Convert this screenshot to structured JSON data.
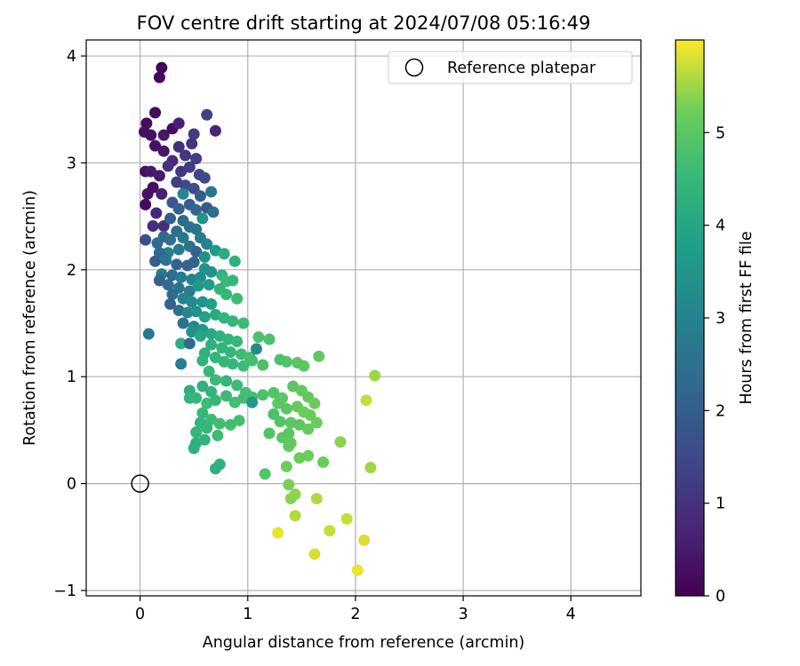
{
  "chart_data": {
    "type": "scatter",
    "title": "FOV centre drift starting at 2024/07/08 05:16:49",
    "xlabel": "Angular distance from reference (arcmin)",
    "ylabel": "Rotation from reference (arcmin)",
    "xlim": [
      -0.5,
      4.65
    ],
    "ylim": [
      -1.05,
      4.15
    ],
    "x_ticks": [
      0,
      1,
      2,
      3,
      4
    ],
    "x_tick_labels": [
      "0",
      "1",
      "2",
      "3",
      "4"
    ],
    "y_ticks": [
      -1,
      0,
      1,
      2,
      3,
      4
    ],
    "y_tick_labels": [
      "−1",
      "0",
      "1",
      "2",
      "3",
      "4"
    ],
    "grid": true,
    "legend": {
      "placement": "top-right",
      "entries": [
        {
          "label": "Reference platepar",
          "marker": "open-circle"
        }
      ]
    },
    "reference_point": {
      "x": 0,
      "y": 0,
      "label": "Reference platepar"
    },
    "colorbar": {
      "label": "Hours from first FF file",
      "colormap": "viridis",
      "range": [
        0,
        6
      ],
      "ticks": [
        0,
        1,
        2,
        3,
        4,
        5
      ],
      "tick_labels": [
        "0",
        "1",
        "2",
        "3",
        "4",
        "5"
      ]
    },
    "points": [
      {
        "x": 0.2,
        "y": 3.89,
        "c": 0.1
      },
      {
        "x": 0.18,
        "y": 3.8,
        "c": 0.1
      },
      {
        "x": 0.14,
        "y": 3.47,
        "c": 0.2
      },
      {
        "x": 0.06,
        "y": 3.37,
        "c": 0.2
      },
      {
        "x": 0.04,
        "y": 3.29,
        "c": 0.3
      },
      {
        "x": 0.1,
        "y": 3.26,
        "c": 0.3
      },
      {
        "x": 0.14,
        "y": 3.16,
        "c": 0.3
      },
      {
        "x": 0.22,
        "y": 3.26,
        "c": 0.4
      },
      {
        "x": 0.3,
        "y": 3.32,
        "c": 0.2
      },
      {
        "x": 0.36,
        "y": 3.37,
        "c": 0.6
      },
      {
        "x": 0.22,
        "y": 3.11,
        "c": 0.4
      },
      {
        "x": 0.05,
        "y": 2.92,
        "c": 0.3
      },
      {
        "x": 0.1,
        "y": 2.92,
        "c": 0.5
      },
      {
        "x": 0.18,
        "y": 2.88,
        "c": 0.5
      },
      {
        "x": 0.07,
        "y": 2.71,
        "c": 0.3
      },
      {
        "x": 0.12,
        "y": 2.77,
        "c": 0.3
      },
      {
        "x": 0.05,
        "y": 2.61,
        "c": 0.2
      },
      {
        "x": 0.2,
        "y": 2.71,
        "c": 0.6
      },
      {
        "x": 0.15,
        "y": 2.53,
        "c": 0.8
      },
      {
        "x": 0.12,
        "y": 2.41,
        "c": 0.9
      },
      {
        "x": 0.22,
        "y": 2.41,
        "c": 0.9
      },
      {
        "x": 0.05,
        "y": 2.28,
        "c": 1.6
      },
      {
        "x": 0.62,
        "y": 3.45,
        "c": 1.3
      },
      {
        "x": 0.7,
        "y": 3.3,
        "c": 0.7
      },
      {
        "x": 0.5,
        "y": 3.27,
        "c": 1.2
      },
      {
        "x": 0.48,
        "y": 3.18,
        "c": 1.0
      },
      {
        "x": 0.36,
        "y": 3.15,
        "c": 0.9
      },
      {
        "x": 0.3,
        "y": 3.02,
        "c": 0.8
      },
      {
        "x": 0.42,
        "y": 3.07,
        "c": 1.1
      },
      {
        "x": 0.52,
        "y": 3.04,
        "c": 1.2
      },
      {
        "x": 0.26,
        "y": 2.97,
        "c": 1.0
      },
      {
        "x": 0.38,
        "y": 2.92,
        "c": 1.1
      },
      {
        "x": 0.46,
        "y": 2.96,
        "c": 1.2
      },
      {
        "x": 0.55,
        "y": 2.89,
        "c": 1.4
      },
      {
        "x": 0.6,
        "y": 2.86,
        "c": 1.5
      },
      {
        "x": 0.34,
        "y": 2.82,
        "c": 1.3
      },
      {
        "x": 0.42,
        "y": 2.79,
        "c": 1.5
      },
      {
        "x": 0.5,
        "y": 2.76,
        "c": 1.6
      },
      {
        "x": 0.56,
        "y": 2.69,
        "c": 2.0
      },
      {
        "x": 0.66,
        "y": 2.73,
        "c": 2.6
      },
      {
        "x": 0.4,
        "y": 2.71,
        "c": 3.1
      },
      {
        "x": 0.3,
        "y": 2.63,
        "c": 1.8
      },
      {
        "x": 0.36,
        "y": 2.57,
        "c": 2.1
      },
      {
        "x": 0.46,
        "y": 2.61,
        "c": 2.0
      },
      {
        "x": 0.52,
        "y": 2.56,
        "c": 2.2
      },
      {
        "x": 0.62,
        "y": 2.58,
        "c": 1.9
      },
      {
        "x": 0.68,
        "y": 2.54,
        "c": 2.4
      },
      {
        "x": 0.58,
        "y": 2.48,
        "c": 3.5
      },
      {
        "x": 0.28,
        "y": 2.48,
        "c": 2.0
      },
      {
        "x": 0.4,
        "y": 2.46,
        "c": 2.3
      },
      {
        "x": 0.46,
        "y": 2.4,
        "c": 2.5
      },
      {
        "x": 0.52,
        "y": 2.38,
        "c": 2.6
      },
      {
        "x": 0.34,
        "y": 2.36,
        "c": 2.4
      },
      {
        "x": 0.22,
        "y": 2.31,
        "c": 2.2
      },
      {
        "x": 0.16,
        "y": 2.25,
        "c": 2.4
      },
      {
        "x": 0.28,
        "y": 2.28,
        "c": 2.5
      },
      {
        "x": 0.4,
        "y": 2.3,
        "c": 2.7
      },
      {
        "x": 0.56,
        "y": 2.3,
        "c": 2.8
      },
      {
        "x": 0.62,
        "y": 2.24,
        "c": 3.0
      },
      {
        "x": 0.46,
        "y": 2.22,
        "c": 2.6
      },
      {
        "x": 0.36,
        "y": 2.19,
        "c": 2.7
      },
      {
        "x": 0.26,
        "y": 2.16,
        "c": 2.9
      },
      {
        "x": 0.18,
        "y": 2.16,
        "c": 2.3
      },
      {
        "x": 0.52,
        "y": 2.17,
        "c": 2.2
      },
      {
        "x": 0.6,
        "y": 2.12,
        "c": 3.4
      },
      {
        "x": 0.7,
        "y": 2.18,
        "c": 3.7
      },
      {
        "x": 0.78,
        "y": 2.15,
        "c": 4.2
      },
      {
        "x": 0.88,
        "y": 2.08,
        "c": 4.3
      },
      {
        "x": 0.14,
        "y": 2.08,
        "c": 2.0
      },
      {
        "x": 0.24,
        "y": 2.09,
        "c": 2.6
      },
      {
        "x": 0.34,
        "y": 2.05,
        "c": 2.2
      },
      {
        "x": 0.44,
        "y": 2.04,
        "c": 2.1
      },
      {
        "x": 0.5,
        "y": 2.07,
        "c": 2.2
      },
      {
        "x": 0.6,
        "y": 2.01,
        "c": 3.5
      },
      {
        "x": 0.66,
        "y": 1.98,
        "c": 3.4
      },
      {
        "x": 0.76,
        "y": 1.95,
        "c": 4.4
      },
      {
        "x": 0.8,
        "y": 1.89,
        "c": 4.6
      },
      {
        "x": 0.86,
        "y": 1.9,
        "c": 4.5
      },
      {
        "x": 0.2,
        "y": 1.96,
        "c": 2.7
      },
      {
        "x": 0.3,
        "y": 1.95,
        "c": 2.4
      },
      {
        "x": 0.38,
        "y": 1.93,
        "c": 2.8
      },
      {
        "x": 0.48,
        "y": 1.91,
        "c": 3.0
      },
      {
        "x": 0.56,
        "y": 1.93,
        "c": 3.3
      },
      {
        "x": 0.18,
        "y": 1.9,
        "c": 2.1
      },
      {
        "x": 0.26,
        "y": 1.86,
        "c": 2.4
      },
      {
        "x": 0.36,
        "y": 1.83,
        "c": 2.6
      },
      {
        "x": 0.46,
        "y": 1.8,
        "c": 2.8
      },
      {
        "x": 0.54,
        "y": 1.85,
        "c": 3.6
      },
      {
        "x": 0.64,
        "y": 1.86,
        "c": 3.7
      },
      {
        "x": 0.74,
        "y": 1.82,
        "c": 4.4
      },
      {
        "x": 0.8,
        "y": 1.77,
        "c": 4.5
      },
      {
        "x": 0.9,
        "y": 1.73,
        "c": 4.6
      },
      {
        "x": 0.3,
        "y": 1.77,
        "c": 2.3
      },
      {
        "x": 0.4,
        "y": 1.73,
        "c": 3.0
      },
      {
        "x": 0.48,
        "y": 1.7,
        "c": 3.2
      },
      {
        "x": 0.58,
        "y": 1.7,
        "c": 3.5
      },
      {
        "x": 0.66,
        "y": 1.68,
        "c": 3.8
      },
      {
        "x": 0.28,
        "y": 1.68,
        "c": 2.1
      },
      {
        "x": 0.36,
        "y": 1.62,
        "c": 2.5
      },
      {
        "x": 0.44,
        "y": 1.6,
        "c": 3.1
      },
      {
        "x": 0.52,
        "y": 1.61,
        "c": 3.4
      },
      {
        "x": 0.6,
        "y": 1.56,
        "c": 3.9
      },
      {
        "x": 0.7,
        "y": 1.58,
        "c": 4.1
      },
      {
        "x": 0.78,
        "y": 1.55,
        "c": 4.4
      },
      {
        "x": 0.86,
        "y": 1.52,
        "c": 4.5
      },
      {
        "x": 0.96,
        "y": 1.5,
        "c": 4.6
      },
      {
        "x": 0.4,
        "y": 1.5,
        "c": 2.6
      },
      {
        "x": 0.5,
        "y": 1.47,
        "c": 3.2
      },
      {
        "x": 0.58,
        "y": 1.44,
        "c": 3.6
      },
      {
        "x": 0.66,
        "y": 1.4,
        "c": 4.1
      },
      {
        "x": 0.74,
        "y": 1.38,
        "c": 4.3
      },
      {
        "x": 0.82,
        "y": 1.35,
        "c": 4.4
      },
      {
        "x": 0.9,
        "y": 1.33,
        "c": 4.5
      },
      {
        "x": 0.48,
        "y": 1.42,
        "c": 3.4
      },
      {
        "x": 0.56,
        "y": 1.38,
        "c": 4.0
      },
      {
        "x": 0.66,
        "y": 1.3,
        "c": 4.3
      },
      {
        "x": 0.76,
        "y": 1.27,
        "c": 4.4
      },
      {
        "x": 0.84,
        "y": 1.23,
        "c": 4.5
      },
      {
        "x": 0.94,
        "y": 1.21,
        "c": 4.6
      },
      {
        "x": 1.02,
        "y": 1.18,
        "c": 4.7
      },
      {
        "x": 1.08,
        "y": 1.26,
        "c": 3.2
      },
      {
        "x": 1.1,
        "y": 1.37,
        "c": 4.8
      },
      {
        "x": 1.2,
        "y": 1.35,
        "c": 4.8
      },
      {
        "x": 0.38,
        "y": 1.31,
        "c": 4.2
      },
      {
        "x": 0.46,
        "y": 1.31,
        "c": 2.3
      },
      {
        "x": 0.08,
        "y": 1.4,
        "c": 2.7
      },
      {
        "x": 0.6,
        "y": 1.22,
        "c": 4.3
      },
      {
        "x": 0.7,
        "y": 1.18,
        "c": 4.4
      },
      {
        "x": 0.78,
        "y": 1.14,
        "c": 4.5
      },
      {
        "x": 0.86,
        "y": 1.12,
        "c": 4.5
      },
      {
        "x": 0.96,
        "y": 1.1,
        "c": 4.6
      },
      {
        "x": 1.04,
        "y": 1.15,
        "c": 4.7
      },
      {
        "x": 1.14,
        "y": 1.11,
        "c": 4.8
      },
      {
        "x": 1.3,
        "y": 1.16,
        "c": 4.8
      },
      {
        "x": 1.36,
        "y": 1.14,
        "c": 4.9
      },
      {
        "x": 1.46,
        "y": 1.13,
        "c": 5.0
      },
      {
        "x": 1.52,
        "y": 1.1,
        "c": 5.0
      },
      {
        "x": 1.66,
        "y": 1.19,
        "c": 5.1
      },
      {
        "x": 0.38,
        "y": 1.12,
        "c": 2.9
      },
      {
        "x": 0.58,
        "y": 1.15,
        "c": 4.4
      },
      {
        "x": 0.64,
        "y": 1.05,
        "c": 4.5
      },
      {
        "x": 0.7,
        "y": 0.97,
        "c": 4.6
      },
      {
        "x": 0.8,
        "y": 0.96,
        "c": 4.5
      },
      {
        "x": 0.9,
        "y": 0.92,
        "c": 4.6
      },
      {
        "x": 0.98,
        "y": 0.85,
        "c": 4.7
      },
      {
        "x": 1.04,
        "y": 0.81,
        "c": 4.7
      },
      {
        "x": 0.58,
        "y": 0.91,
        "c": 4.3
      },
      {
        "x": 0.66,
        "y": 0.86,
        "c": 4.4
      },
      {
        "x": 0.46,
        "y": 0.87,
        "c": 4.3
      },
      {
        "x": 0.46,
        "y": 0.8,
        "c": 4.4
      },
      {
        "x": 0.52,
        "y": 0.8,
        "c": 4.5
      },
      {
        "x": 0.62,
        "y": 0.75,
        "c": 4.6
      },
      {
        "x": 0.7,
        "y": 0.78,
        "c": 4.5
      },
      {
        "x": 0.8,
        "y": 0.82,
        "c": 4.6
      },
      {
        "x": 0.88,
        "y": 0.76,
        "c": 4.7
      },
      {
        "x": 0.96,
        "y": 0.8,
        "c": 4.7
      },
      {
        "x": 1.04,
        "y": 0.76,
        "c": 3.6
      },
      {
        "x": 1.14,
        "y": 0.83,
        "c": 4.8
      },
      {
        "x": 1.24,
        "y": 0.85,
        "c": 4.9
      },
      {
        "x": 1.32,
        "y": 0.8,
        "c": 5.0
      },
      {
        "x": 1.42,
        "y": 0.91,
        "c": 5.0
      },
      {
        "x": 1.5,
        "y": 0.87,
        "c": 5.1
      },
      {
        "x": 1.56,
        "y": 0.81,
        "c": 5.1
      },
      {
        "x": 1.62,
        "y": 0.75,
        "c": 5.2
      },
      {
        "x": 1.28,
        "y": 0.75,
        "c": 5.0
      },
      {
        "x": 1.36,
        "y": 0.7,
        "c": 5.0
      },
      {
        "x": 1.46,
        "y": 0.72,
        "c": 5.1
      },
      {
        "x": 1.52,
        "y": 0.67,
        "c": 5.2
      },
      {
        "x": 1.58,
        "y": 0.64,
        "c": 5.2
      },
      {
        "x": 1.24,
        "y": 0.65,
        "c": 4.8
      },
      {
        "x": 1.3,
        "y": 0.58,
        "c": 4.9
      },
      {
        "x": 1.4,
        "y": 0.57,
        "c": 5.0
      },
      {
        "x": 1.48,
        "y": 0.55,
        "c": 5.0
      },
      {
        "x": 1.56,
        "y": 0.51,
        "c": 5.1
      },
      {
        "x": 1.64,
        "y": 0.57,
        "c": 5.2
      },
      {
        "x": 0.58,
        "y": 0.66,
        "c": 4.5
      },
      {
        "x": 0.66,
        "y": 0.6,
        "c": 4.6
      },
      {
        "x": 0.74,
        "y": 0.56,
        "c": 4.7
      },
      {
        "x": 0.84,
        "y": 0.55,
        "c": 4.7
      },
      {
        "x": 0.92,
        "y": 0.59,
        "c": 4.7
      },
      {
        "x": 0.56,
        "y": 0.57,
        "c": 4.4
      },
      {
        "x": 0.52,
        "y": 0.48,
        "c": 4.4
      },
      {
        "x": 0.62,
        "y": 0.52,
        "c": 4.5
      },
      {
        "x": 0.72,
        "y": 0.45,
        "c": 4.6
      },
      {
        "x": 0.52,
        "y": 0.38,
        "c": 4.3
      },
      {
        "x": 0.5,
        "y": 0.33,
        "c": 4.3
      },
      {
        "x": 0.6,
        "y": 0.41,
        "c": 4.4
      },
      {
        "x": 1.2,
        "y": 0.47,
        "c": 4.9
      },
      {
        "x": 1.32,
        "y": 0.43,
        "c": 5.0
      },
      {
        "x": 1.38,
        "y": 0.47,
        "c": 5.0
      },
      {
        "x": 1.4,
        "y": 0.38,
        "c": 5.1
      },
      {
        "x": 1.38,
        "y": 0.35,
        "c": 5.1
      },
      {
        "x": 1.48,
        "y": 0.24,
        "c": 5.2
      },
      {
        "x": 1.56,
        "y": 0.26,
        "c": 5.2
      },
      {
        "x": 1.7,
        "y": 0.2,
        "c": 5.2
      },
      {
        "x": 1.86,
        "y": 0.39,
        "c": 5.4
      },
      {
        "x": 0.74,
        "y": 0.18,
        "c": 4.3
      },
      {
        "x": 0.7,
        "y": 0.14,
        "c": 4.3
      },
      {
        "x": 1.36,
        "y": 0.16,
        "c": 5.2
      },
      {
        "x": 1.16,
        "y": 0.09,
        "c": 4.9
      },
      {
        "x": 2.14,
        "y": 0.15,
        "c": 5.5
      },
      {
        "x": 2.18,
        "y": 1.01,
        "c": 5.5
      },
      {
        "x": 2.1,
        "y": 0.78,
        "c": 5.7
      },
      {
        "x": 1.38,
        "y": -0.01,
        "c": 5.3
      },
      {
        "x": 1.44,
        "y": -0.1,
        "c": 5.4
      },
      {
        "x": 1.4,
        "y": -0.14,
        "c": 5.4
      },
      {
        "x": 1.64,
        "y": -0.14,
        "c": 5.6
      },
      {
        "x": 1.44,
        "y": -0.3,
        "c": 5.6
      },
      {
        "x": 1.92,
        "y": -0.33,
        "c": 5.7
      },
      {
        "x": 1.28,
        "y": -0.46,
        "c": 5.9
      },
      {
        "x": 1.76,
        "y": -0.44,
        "c": 5.7
      },
      {
        "x": 2.08,
        "y": -0.53,
        "c": 5.8
      },
      {
        "x": 1.62,
        "y": -0.66,
        "c": 5.8
      },
      {
        "x": 2.02,
        "y": -0.81,
        "c": 5.9
      }
    ]
  }
}
